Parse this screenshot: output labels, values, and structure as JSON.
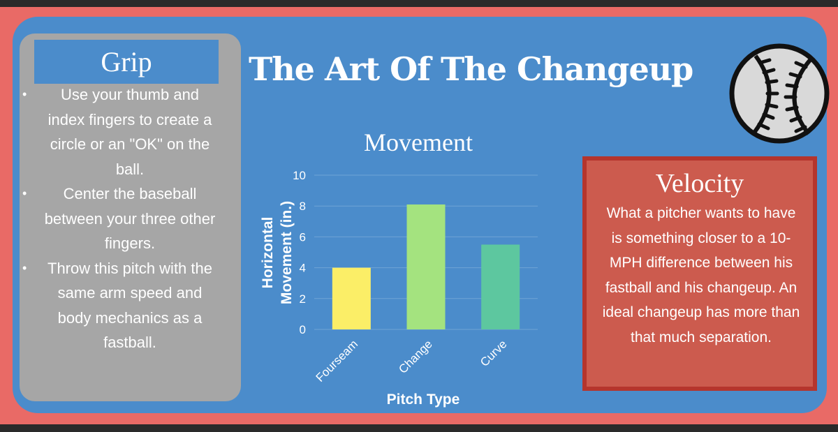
{
  "title": "The Art Of The Changeup",
  "grip": {
    "title": "Grip",
    "items": [
      "Use your thumb and index fingers to create a circle or an \"OK\" on the ball.",
      "Center the baseball between your three other fingers.",
      "Throw this pitch with the same arm speed and body mechanics as a fastball."
    ]
  },
  "velocity": {
    "title": "Velocity",
    "text": "What a pitcher wants to have is something closer to a 10-MPH difference between his fastball and his changeup. An ideal changeup has more than that much separation."
  },
  "icons": {
    "ball": "baseball-icon"
  },
  "colors": {
    "border": "#e96a66",
    "panel": "#4b8ccb",
    "grip_box": "#a6a6a6",
    "velocity_box": "#cc5b4e",
    "velocity_border": "#b5352d"
  },
  "chart_data": {
    "type": "bar",
    "title": "Movement",
    "xlabel": "Pitch Type",
    "ylabel": "Horizontal Movement (in.)",
    "ylim": [
      0,
      10
    ],
    "yticks": [
      0,
      2,
      4,
      6,
      8,
      10
    ],
    "categories": [
      "Fourseam",
      "Change",
      "Curve"
    ],
    "values": [
      4,
      8.1,
      5.5
    ],
    "colors": [
      "#fbee67",
      "#a4e37f",
      "#5dc79f"
    ],
    "grid": true,
    "legend": "none"
  }
}
